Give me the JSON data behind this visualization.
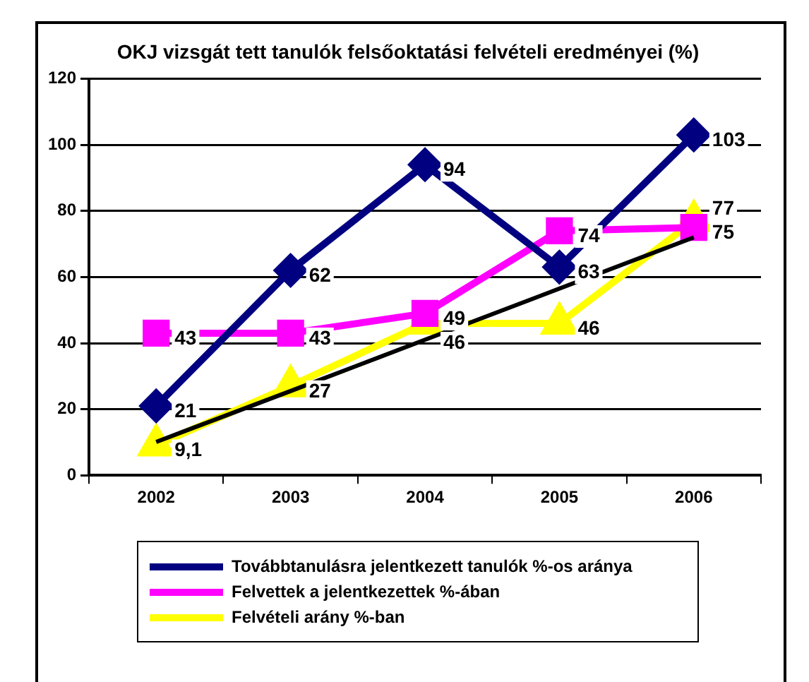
{
  "chart_data": {
    "type": "line",
    "title": "OKJ vizsgát tett tanulók felsőoktatási felvételi eredményei (%)",
    "categories": [
      "2002",
      "2003",
      "2004",
      "2005",
      "2006"
    ],
    "series": [
      {
        "name": "Továbbtanulásra jelentkezett tanulók %-os aránya",
        "color": "#000080",
        "marker": "diamond",
        "values": [
          21,
          62,
          94,
          63,
          103
        ],
        "value_labels": [
          "21",
          "62",
          "94",
          "63",
          "103"
        ]
      },
      {
        "name": "Felvettek a jelentkezettek %-ában",
        "color": "#ff00ff",
        "marker": "square",
        "values": [
          43,
          43,
          49,
          74,
          75
        ],
        "value_labels": [
          "43",
          "43",
          "49",
          "74",
          "75"
        ]
      },
      {
        "name": "Felvételi arány %-ban",
        "color": "#ffff00",
        "marker": "triangle",
        "values": [
          9.1,
          27,
          46,
          46,
          77
        ],
        "value_labels": [
          "9,1",
          "27",
          "46",
          "46",
          "77"
        ]
      },
      {
        "type": "line",
        "color": "#000000",
        "marker": "none",
        "values": [
          10.1,
          25.5,
          41,
          56.5,
          72
        ]
      }
    ],
    "ylim": [
      0,
      120
    ],
    "yticks": [
      0,
      20,
      40,
      60,
      80,
      100,
      120
    ],
    "grid": "y",
    "legend": "bottom"
  }
}
